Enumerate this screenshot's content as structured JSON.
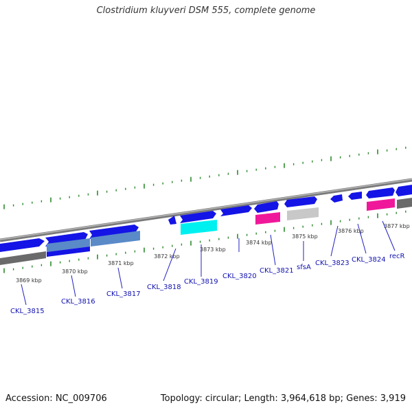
{
  "title": "Clostridium kluyveri DSM 555, complete genome",
  "footer": {
    "accession": "Accession: NC_009706",
    "summary": "Topology: circular; Length: 3,964,618 bp; Genes: 3,919"
  },
  "colors": {
    "forward": "#1414e6",
    "reverse": "#1414e6",
    "backbone": "#909090",
    "tick": "#2a8a2a",
    "label_line": "#2020c0",
    "cyan": "#00f0f0",
    "magenta": "#f0189a",
    "steel": "#5a8ac8",
    "gray": "#c8c8c8",
    "darkgray": "#707070"
  },
  "scale_labels": [
    {
      "text": "3869 kbp"
    },
    {
      "text": "3870 kbp"
    },
    {
      "text": "3871 kbp"
    },
    {
      "text": "3872 kbp"
    },
    {
      "text": "3873 kbp"
    },
    {
      "text": "3874 kbp"
    },
    {
      "text": "3875 kbp"
    },
    {
      "text": "3876 kbp"
    },
    {
      "text": "3877 kbp"
    }
  ],
  "gene_labels": [
    {
      "text": "CKL_3815"
    },
    {
      "text": "CKL_3816"
    },
    {
      "text": "CKL_3817"
    },
    {
      "text": "CKL_3818"
    },
    {
      "text": "CKL_3819"
    },
    {
      "text": "CKL_3820"
    },
    {
      "text": "CKL_3821"
    },
    {
      "text": "sfsA"
    },
    {
      "text": "CKL_3823"
    },
    {
      "text": "CKL_3824"
    },
    {
      "text": "recR"
    }
  ]
}
